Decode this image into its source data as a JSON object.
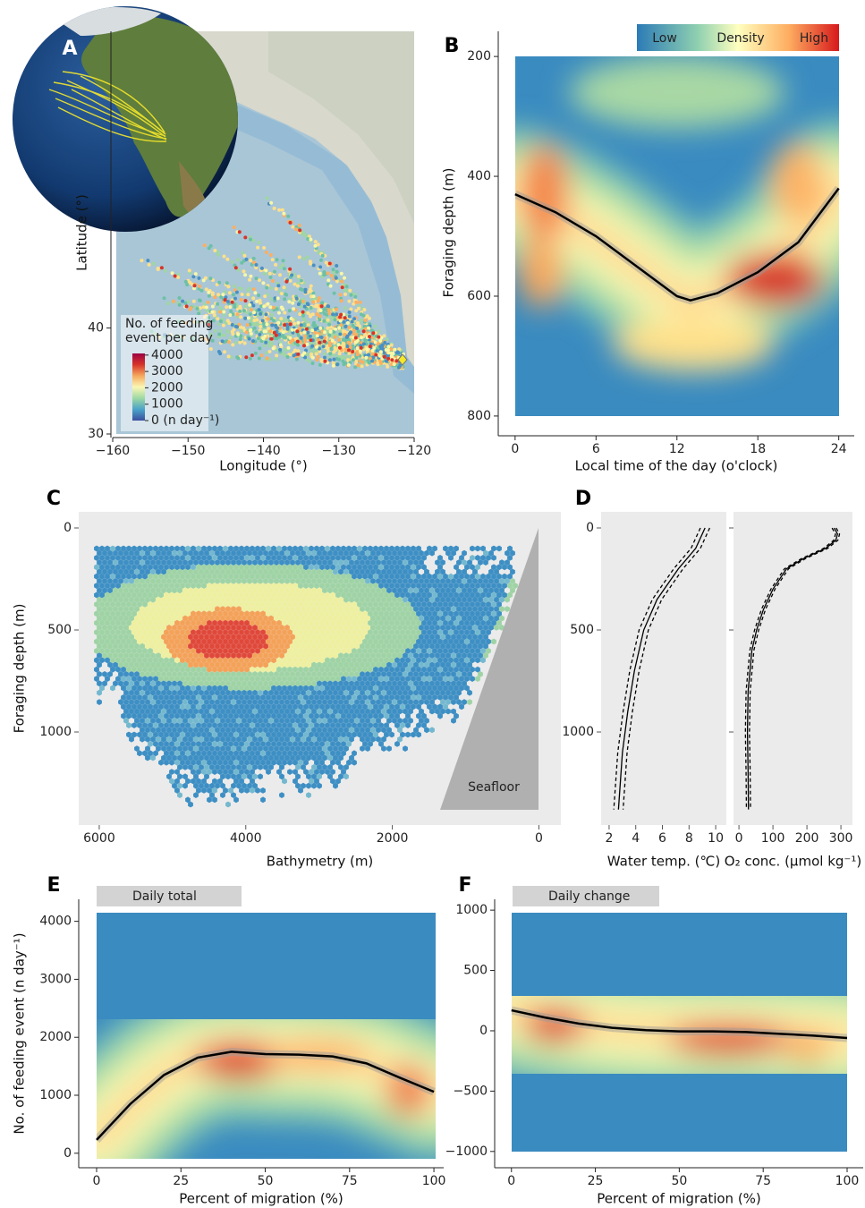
{
  "chart_data": [
    {
      "type": "map",
      "label": "A",
      "xlabel": "Longitude (°)",
      "ylabel": "Latitude (°)",
      "xlim": [
        -160,
        -120
      ],
      "xticks": [
        {
          "value": -160,
          "label": "−160"
        },
        {
          "value": -150,
          "label": "−150"
        },
        {
          "value": -140,
          "label": "−140"
        },
        {
          "value": -130,
          "label": "−130"
        },
        {
          "value": -120,
          "label": "−120"
        }
      ],
      "ylim": [
        30,
        68
      ],
      "yticks": [
        30,
        40
      ],
      "colorbar": {
        "title": [
          "No. of feeding",
          "event per day"
        ],
        "lim": [
          0,
          4100
        ],
        "ticks": [
          {
            "value": 0,
            "label": "0 (n day⁻¹)"
          },
          1000,
          2000,
          3000,
          4000
        ],
        "colors": [
          "#3b4fa0",
          "#4aa3c8",
          "#9ed8a4",
          "#fbf7b4",
          "#f6a95e",
          "#d7342a",
          "#9e0142"
        ]
      }
    },
    {
      "type": "density",
      "label": "B",
      "xlabel": "Local time of the day (o'clock)",
      "ylabel": "Foraging depth (m)",
      "xlim": [
        -1.25,
        25.15
      ],
      "xticks": [
        0,
        6,
        12,
        18,
        24
      ],
      "ylim": [
        830,
        158
      ],
      "yticks": [
        200,
        400,
        600,
        800
      ],
      "x": [
        0,
        3,
        6,
        9,
        12,
        13,
        15,
        18,
        21,
        24
      ],
      "values": [
        430,
        460,
        500,
        550,
        600,
        607,
        595,
        560,
        510,
        420
      ],
      "line_color": "#000000",
      "legend": {
        "labels": [
          "Low",
          "Density",
          "High"
        ]
      }
    },
    {
      "type": "hexbin",
      "label": "C",
      "xlabel": "Bathymetry (m)",
      "ylabel": "Foraging depth (m)",
      "xlim": [
        6280,
        -300
      ],
      "xticks": [
        6000,
        4000,
        2000,
        0
      ],
      "ylim": [
        1456,
        -79
      ],
      "yticks": [
        0,
        500,
        1000
      ],
      "annotation": "Seafloor"
    },
    {
      "type": "profile",
      "label": "D",
      "xlabel": "Water temp. (℃)",
      "xlim": [
        1.4,
        10.8
      ],
      "xticks": [
        2,
        4,
        6,
        8,
        10
      ],
      "ylim": [
        1456,
        -79
      ],
      "yticks": [
        0,
        500,
        1000
      ],
      "depth": [
        0,
        100,
        200,
        350,
        500,
        700,
        900,
        1100,
        1380
      ],
      "values": [
        9.2,
        8.5,
        7.2,
        5.6,
        4.6,
        3.9,
        3.4,
        3.0,
        2.7
      ],
      "lower": [
        8.85,
        8.15,
        6.85,
        5.25,
        4.25,
        3.55,
        3.05,
        2.65,
        2.35
      ],
      "upper": [
        9.55,
        8.85,
        7.55,
        5.95,
        4.95,
        4.25,
        3.75,
        3.35,
        3.05
      ]
    },
    {
      "type": "profile",
      "xlabel": "O₂ conc. (μmol kg⁻¹)",
      "xlim": [
        -16,
        334
      ],
      "xticks": [
        0,
        100,
        200,
        300
      ],
      "ylim": [
        1456,
        -79
      ],
      "yticks": [
        0,
        500,
        1000
      ],
      "ytick_labels": false,
      "depth": [
        0,
        30,
        60,
        100,
        150,
        200,
        300,
        400,
        500,
        600,
        800,
        1000,
        1200,
        1380
      ],
      "values": [
        280,
        290,
        285,
        255,
        190,
        140,
        100,
        72,
        52,
        38,
        27,
        25,
        27,
        28
      ],
      "lower": [
        274,
        284,
        279,
        249,
        184,
        134,
        94,
        66,
        46,
        32,
        21,
        19,
        21,
        22
      ],
      "upper": [
        286,
        296,
        291,
        261,
        196,
        146,
        106,
        78,
        58,
        44,
        33,
        31,
        33,
        34
      ]
    },
    {
      "type": "density",
      "label": "E",
      "strip": "Daily total",
      "xlabel": "Percent of migration (%)",
      "ylabel": "No. of feeding event (n day⁻¹)",
      "xlim": [
        -5.3,
        102.9
      ],
      "xticks": [
        0,
        25,
        50,
        75,
        100
      ],
      "ylim": [
        -250,
        4380
      ],
      "yticks": [
        0,
        1000,
        2000,
        3000,
        4000
      ],
      "x": [
        0,
        10,
        20,
        30,
        40,
        50,
        60,
        70,
        80,
        90,
        100
      ],
      "values": [
        230,
        850,
        1350,
        1650,
        1750,
        1710,
        1700,
        1670,
        1550,
        1300,
        1060
      ],
      "line_color": "#000000"
    },
    {
      "type": "density",
      "label": "F",
      "strip": "Daily change",
      "xlabel": "Percent of migration (%)",
      "xlim": [
        -5,
        104.8
      ],
      "xticks": [
        0,
        25,
        50,
        75,
        100
      ],
      "ylim": [
        -1135,
        1090
      ],
      "yticks": [
        {
          "value": -1000,
          "label": "−1000"
        },
        {
          "value": -500,
          "label": "−500"
        },
        0,
        500,
        1000
      ],
      "x": [
        0,
        10,
        20,
        30,
        40,
        50,
        60,
        70,
        80,
        90,
        100
      ],
      "values": [
        170,
        110,
        60,
        25,
        5,
        -5,
        -5,
        -10,
        -25,
        -40,
        -60
      ],
      "line_color": "#000000"
    }
  ]
}
